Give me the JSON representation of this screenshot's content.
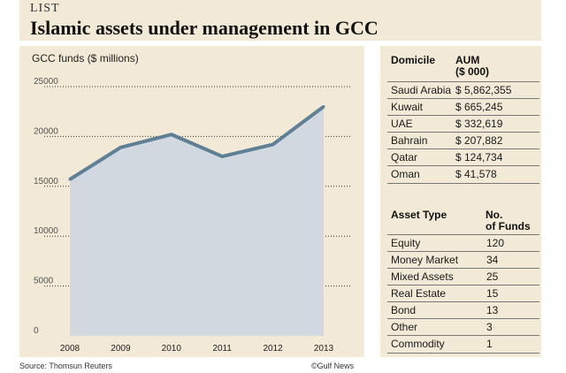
{
  "header": {
    "kicker": "LIST",
    "title": "Islamic assets under management in GCC"
  },
  "chart_data": {
    "type": "area",
    "title": "GCC funds ($ millions)",
    "x": [
      "2008",
      "2009",
      "2010",
      "2011",
      "2012",
      "2013"
    ],
    "values": [
      15700,
      18900,
      20200,
      18000,
      19200,
      23000
    ],
    "ylim": [
      0,
      25000
    ],
    "yticks": [
      "0",
      "5000",
      "10000",
      "15000",
      "20000",
      "25000"
    ],
    "grid": true,
    "colors": {
      "line": "#5f7f95",
      "fill": "#d1d8e0",
      "grid": "#333333"
    }
  },
  "domicile_table": {
    "headers": [
      "Domicile",
      "AUM",
      "($ 000)"
    ],
    "rows": [
      {
        "name": "Saudi Arabia",
        "value": "$ 5,862,355"
      },
      {
        "name": "Kuwait",
        "value": "$ 665,245"
      },
      {
        "name": "UAE",
        "value": "$ 332,619"
      },
      {
        "name": "Bahrain",
        "value": "$ 207,882"
      },
      {
        "name": "Qatar",
        "value": "$ 124,734"
      },
      {
        "name": "Oman",
        "value": "$ 41,578"
      }
    ]
  },
  "asset_table": {
    "headers": [
      "Asset Type",
      "No.",
      "of Funds"
    ],
    "rows": [
      {
        "name": "Equity",
        "value": "120"
      },
      {
        "name": "Money Market",
        "value": "34"
      },
      {
        "name": "Mixed Assets",
        "value": "25"
      },
      {
        "name": "Real Estate",
        "value": "15"
      },
      {
        "name": "Bond",
        "value": "13"
      },
      {
        "name": "Other",
        "value": "3"
      },
      {
        "name": "Commodity",
        "value": "1"
      }
    ]
  },
  "footer": {
    "source": "Source: Thomsun Reuters",
    "credit": "©Gulf News"
  }
}
